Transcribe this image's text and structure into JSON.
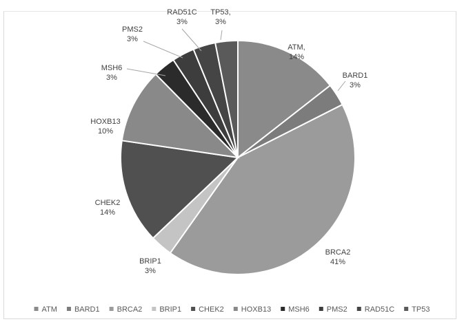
{
  "chart_data": {
    "type": "pie",
    "title": "",
    "slices": [
      {
        "name": "ATM",
        "value": 14,
        "color": "#8a8a8a",
        "label": [
          "ATM,",
          "14%"
        ]
      },
      {
        "name": "BARD1",
        "value": 3,
        "color": "#7c7c7c",
        "label": [
          "BARD1",
          "3%"
        ]
      },
      {
        "name": "BRCA2",
        "value": 41,
        "color": "#9b9b9b",
        "label": [
          "BRCA2",
          "41%"
        ]
      },
      {
        "name": "BRIP1",
        "value": 3,
        "color": "#c4c4c4",
        "label": [
          "BRIP1",
          "3%"
        ]
      },
      {
        "name": "CHEK2",
        "value": 14,
        "color": "#505050",
        "label": [
          "CHEK2",
          "14%"
        ]
      },
      {
        "name": "HOXB13",
        "value": 10,
        "color": "#898989",
        "label": [
          "HOXB13",
          "10%"
        ]
      },
      {
        "name": "MSH6",
        "value": 3,
        "color": "#2b2b2b",
        "label": [
          "MSH6",
          "3%"
        ]
      },
      {
        "name": "PMS2",
        "value": 3,
        "color": "#3d3d3d",
        "label": [
          "PMS2",
          "3%"
        ]
      },
      {
        "name": "RAD51C",
        "value": 3,
        "color": "#454545",
        "label": [
          "RAD51C",
          "3%"
        ]
      },
      {
        "name": "TP53",
        "value": 3,
        "color": "#5a5a5a",
        "label": [
          "TP53,",
          "3%"
        ]
      }
    ],
    "legend": {
      "position": "bottom",
      "entries": [
        "ATM",
        "BARD1",
        "BRCA2",
        "BRIP1",
        "CHEK2",
        "HOXB13",
        "MSH6",
        "PMS2",
        "RAD51C",
        "TP53"
      ]
    }
  }
}
